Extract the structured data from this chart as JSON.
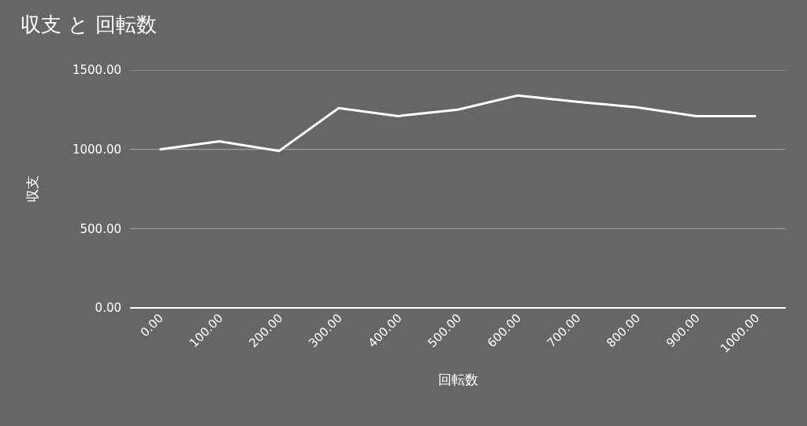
{
  "chart_data": {
    "type": "line",
    "title": "収支 と 回転数",
    "xlabel": "回転数",
    "ylabel": "収支",
    "categories": [
      "0.00",
      "100.00",
      "200.00",
      "300.00",
      "400.00",
      "500.00",
      "600.00",
      "700.00",
      "800.00",
      "900.00",
      "1000.00"
    ],
    "series": [
      {
        "color": "#ffffff",
        "values": [
          1000,
          1050,
          990,
          1260,
          1210,
          1250,
          1340,
          1300,
          1265,
          1210,
          1210
        ]
      }
    ],
    "ylim": [
      0,
      1500
    ],
    "yticks": [
      {
        "value": 0,
        "label": "0.00"
      },
      {
        "value": 500,
        "label": "500.00"
      },
      {
        "value": 1000,
        "label": "1000.00"
      },
      {
        "value": 1500,
        "label": "1500.00"
      }
    ],
    "grid": "y",
    "marker": "none",
    "line_style": "solid"
  }
}
